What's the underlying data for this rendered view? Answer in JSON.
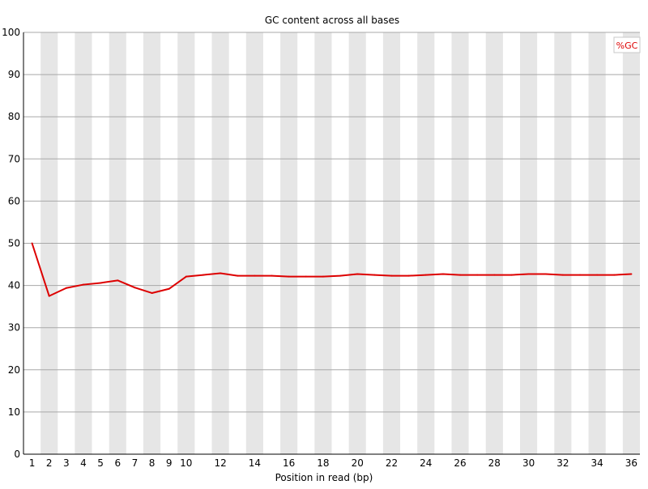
{
  "chart_data": {
    "type": "line",
    "title": "GC content across all bases",
    "xlabel": "Position in read (bp)",
    "ylabel": "",
    "ylim": [
      0,
      100
    ],
    "y_ticks": [
      0,
      10,
      20,
      30,
      40,
      50,
      60,
      70,
      80,
      90,
      100
    ],
    "x_tick_labels": [
      "1",
      "2",
      "3",
      "4",
      "5",
      "6",
      "7",
      "8",
      "9",
      "10",
      "12",
      "14",
      "16",
      "18",
      "20",
      "22",
      "24",
      "26",
      "28",
      "30",
      "32",
      "34",
      "36"
    ],
    "x_positions": [
      "1",
      "2",
      "3",
      "4",
      "5",
      "6",
      "7",
      "8",
      "9",
      "10",
      "11",
      "12",
      "13",
      "14",
      "15",
      "16",
      "17",
      "18",
      "19",
      "20",
      "21",
      "22",
      "23",
      "24",
      "25",
      "26",
      "27",
      "28",
      "29",
      "30",
      "31",
      "32",
      "33",
      "34",
      "35",
      "36"
    ],
    "grid": true,
    "background_bands": "alternating grey vertical bands per position",
    "legend": {
      "placement": "top-right"
    },
    "series": [
      {
        "name": "%GC",
        "color": "#dd0000",
        "values": [
          50.0,
          37.5,
          39.4,
          40.2,
          40.6,
          41.2,
          39.5,
          38.2,
          39.2,
          42.1,
          42.5,
          42.9,
          42.3,
          42.3,
          42.3,
          42.1,
          42.1,
          42.1,
          42.3,
          42.7,
          42.5,
          42.3,
          42.3,
          42.5,
          42.7,
          42.5,
          42.5,
          42.5,
          42.5,
          42.7,
          42.7,
          42.5,
          42.5,
          42.5,
          42.5,
          42.7
        ]
      }
    ]
  }
}
